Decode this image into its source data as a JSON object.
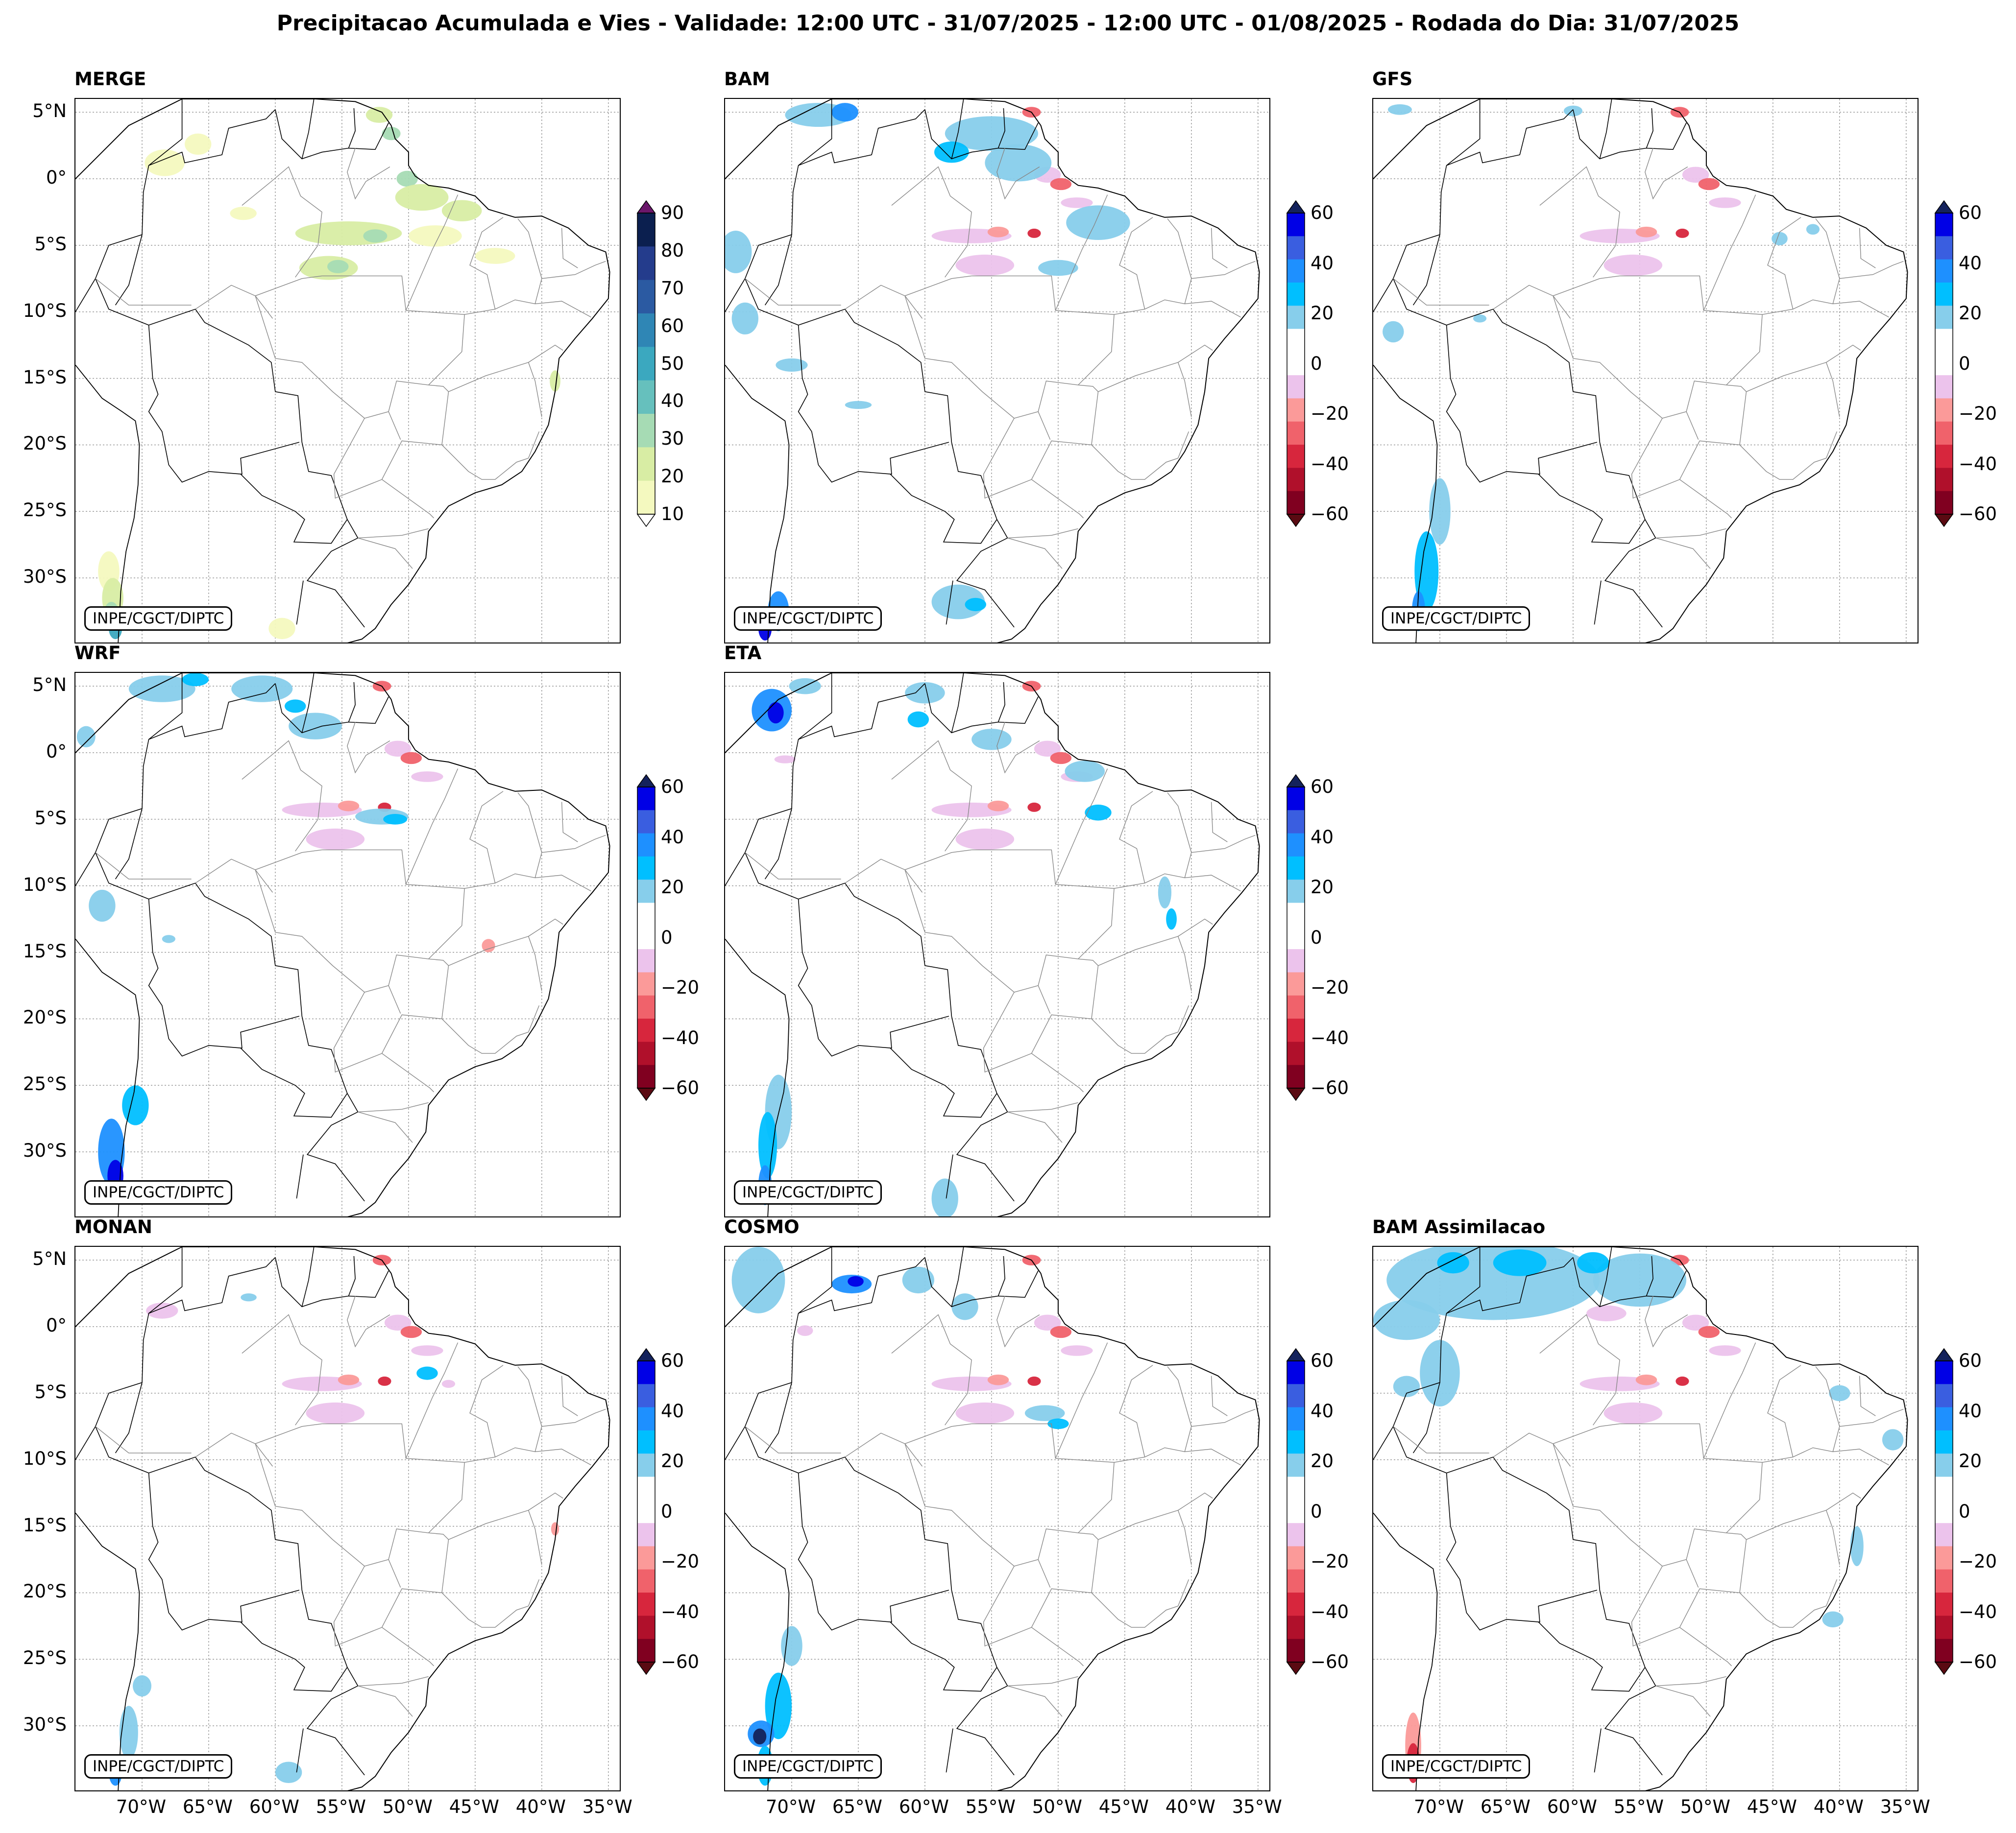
{
  "figure": {
    "title": "Precipitacao Acumulada e Vies - Validade: 12:00 UTC - 31/07/2025 - 12:00 UTC - 01/08/2025 - Rodada do Dia: 31/07/2025",
    "credit": "INPE/CGCT/DIPTC",
    "lat_labels": [
      "5°N",
      "0°",
      "5°S",
      "10°S",
      "15°S",
      "20°S",
      "25°S",
      "30°S"
    ],
    "lon_labels": [
      "70°W",
      "65°W",
      "60°W",
      "55°W",
      "50°W",
      "45°W",
      "40°W",
      "35°W"
    ]
  },
  "panels": [
    {
      "id": "merge",
      "title": "MERGE",
      "kind": "precip"
    },
    {
      "id": "bam",
      "title": "BAM",
      "kind": "bias"
    },
    {
      "id": "gfs",
      "title": "GFS",
      "kind": "bias"
    },
    {
      "id": "wrf",
      "title": "WRF",
      "kind": "bias"
    },
    {
      "id": "eta",
      "title": "ETA",
      "kind": "bias"
    },
    {
      "id": "monan",
      "title": "MONAN",
      "kind": "bias"
    },
    {
      "id": "cosmo",
      "title": "COSMO",
      "kind": "bias"
    },
    {
      "id": "bam-assim",
      "title": "BAM Assimilacao",
      "kind": "bias"
    }
  ],
  "colorbars": {
    "precip": {
      "labels": [
        "90",
        "80",
        "70",
        "60",
        "50",
        "40",
        "30",
        "20",
        "10"
      ],
      "colors_top_to_bottom": [
        "#0b1f4f",
        "#243c8c",
        "#2b5aa2",
        "#2f86b5",
        "#3ba8bf",
        "#66c0bd",
        "#a6dbb4",
        "#d8eda4",
        "#f4f9bf"
      ],
      "extend_top": "#6b176b",
      "extend_bottom": "#ffffff"
    },
    "bias": {
      "labels": [
        "60",
        "40",
        "20",
        "0",
        "−20",
        "−40",
        "−60"
      ],
      "colors_top_to_bottom": [
        "#0000e6",
        "#3a5ee0",
        "#1e90ff",
        "#00bfff",
        "#87ceeb",
        "#ffffff",
        "#ffffff",
        "#ecc3ec",
        "#fb9a99",
        "#f0626b",
        "#d7263d",
        "#b0102b",
        "#800020"
      ],
      "extend_top": "#14225c",
      "extend_bottom": "#5a0a12"
    }
  }
}
